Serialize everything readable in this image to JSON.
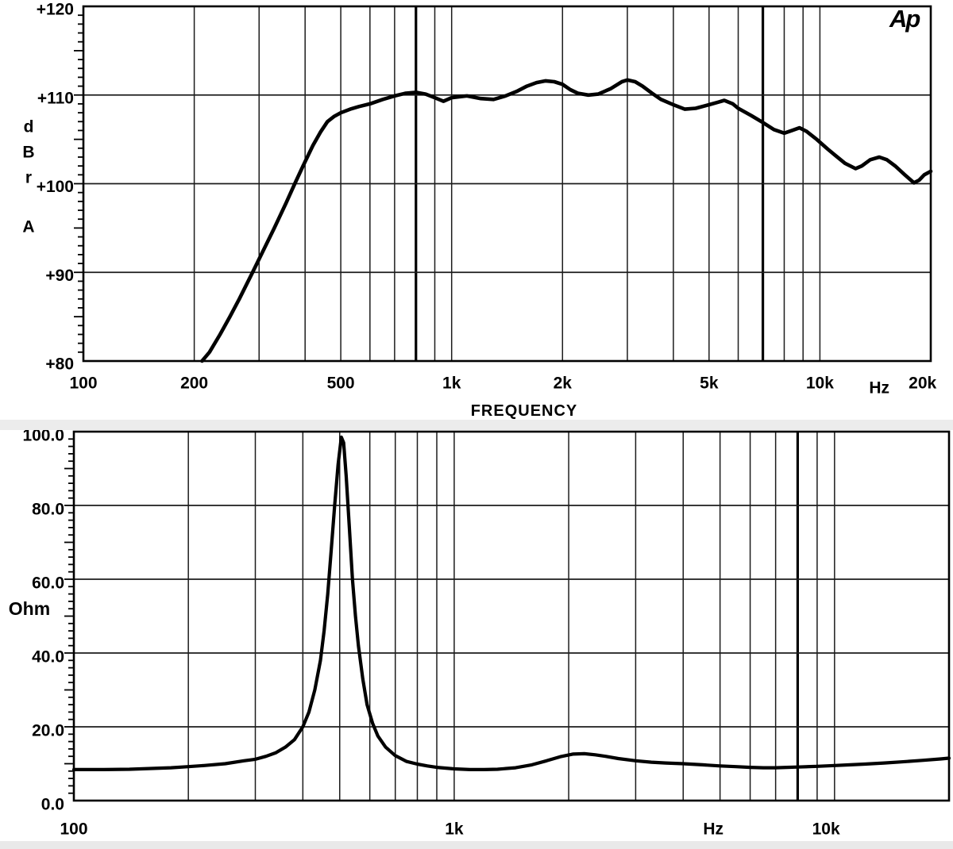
{
  "logo": {
    "text": "Ap"
  },
  "colors": {
    "ink": "#000000",
    "grid": "#1c1c1c",
    "background": "#ffffff"
  },
  "chart_data": [
    {
      "type": "line",
      "panel": "frequency-response",
      "title": "",
      "xlabel": "FREQUENCY",
      "ylabel_lines": [
        "d",
        "B",
        "r",
        "A"
      ],
      "x_scale": "log",
      "xlim": [
        100,
        20000
      ],
      "ylim": [
        80,
        120
      ],
      "grid": true,
      "legend": "none",
      "y_ticks": [
        {
          "v": 120,
          "label": "+120"
        },
        {
          "v": 110,
          "label": "+110"
        },
        {
          "v": 100,
          "label": "+100"
        },
        {
          "v": 90,
          "label": "+90"
        },
        {
          "v": 80,
          "label": "+80"
        }
      ],
      "y_gridlines": [
        90,
        100,
        110
      ],
      "y_minor_step": 1,
      "y_major_every": 5,
      "x_gridlines": [
        200,
        300,
        400,
        500,
        600,
        700,
        800,
        900,
        1000,
        2000,
        3000,
        4000,
        5000,
        6000,
        7000,
        8000,
        9000,
        10000
      ],
      "x_emphasis": [
        800,
        7000
      ],
      "x_ticks": [
        {
          "f": 100,
          "label": "100"
        },
        {
          "f": 200,
          "label": "200"
        },
        {
          "f": 500,
          "label": "500"
        },
        {
          "f": 1000,
          "label": "1k"
        },
        {
          "f": 2000,
          "label": "2k"
        },
        {
          "f": 5000,
          "label": "5k"
        },
        {
          "f": 10000,
          "label": "10k"
        },
        {
          "f": 14500,
          "label": "Hz",
          "dy": 6,
          "unit": true
        },
        {
          "f": 20000,
          "label": "20k",
          "label_f": 19000
        }
      ],
      "series": [
        {
          "points": [
            [
              210,
              80.0
            ],
            [
              220,
              81.0
            ],
            [
              235,
              83.0
            ],
            [
              250,
              85.0
            ],
            [
              265,
              87.0
            ],
            [
              288,
              90.0
            ],
            [
              310,
              92.7
            ],
            [
              330,
              95.0
            ],
            [
              355,
              97.8
            ],
            [
              375,
              100.0
            ],
            [
              395,
              102.0
            ],
            [
              420,
              104.3
            ],
            [
              440,
              105.8
            ],
            [
              460,
              107.0
            ],
            [
              480,
              107.6
            ],
            [
              500,
              108.0
            ],
            [
              530,
              108.4
            ],
            [
              560,
              108.7
            ],
            [
              600,
              109.0
            ],
            [
              650,
              109.5
            ],
            [
              700,
              109.9
            ],
            [
              750,
              110.2
            ],
            [
              800,
              110.3
            ],
            [
              850,
              110.1
            ],
            [
              900,
              109.7
            ],
            [
              950,
              109.3
            ],
            [
              1000,
              109.7
            ],
            [
              1100,
              109.9
            ],
            [
              1200,
              109.6
            ],
            [
              1300,
              109.5
            ],
            [
              1400,
              109.9
            ],
            [
              1500,
              110.4
            ],
            [
              1600,
              111.0
            ],
            [
              1700,
              111.4
            ],
            [
              1800,
              111.6
            ],
            [
              1900,
              111.5
            ],
            [
              2000,
              111.2
            ],
            [
              2100,
              110.6
            ],
            [
              2200,
              110.2
            ],
            [
              2350,
              110.0
            ],
            [
              2500,
              110.1
            ],
            [
              2700,
              110.7
            ],
            [
              2900,
              111.5
            ],
            [
              3000,
              111.7
            ],
            [
              3150,
              111.5
            ],
            [
              3300,
              111.0
            ],
            [
              3500,
              110.2
            ],
            [
              3700,
              109.5
            ],
            [
              4000,
              108.9
            ],
            [
              4300,
              108.4
            ],
            [
              4600,
              108.5
            ],
            [
              5000,
              108.9
            ],
            [
              5300,
              109.2
            ],
            [
              5500,
              109.4
            ],
            [
              5800,
              109.0
            ],
            [
              6000,
              108.5
            ],
            [
              6500,
              107.7
            ],
            [
              7000,
              106.9
            ],
            [
              7500,
              106.1
            ],
            [
              8000,
              105.7
            ],
            [
              8400,
              106.0
            ],
            [
              8800,
              106.3
            ],
            [
              9200,
              105.9
            ],
            [
              9800,
              105.0
            ],
            [
              10500,
              103.9
            ],
            [
              11000,
              103.2
            ],
            [
              11700,
              102.3
            ],
            [
              12500,
              101.7
            ],
            [
              13000,
              102.0
            ],
            [
              13700,
              102.7
            ],
            [
              14500,
              103.0
            ],
            [
              15200,
              102.7
            ],
            [
              16000,
              102.0
            ],
            [
              17000,
              101.0
            ],
            [
              18000,
              100.1
            ],
            [
              18600,
              100.4
            ],
            [
              19200,
              101.0
            ],
            [
              20000,
              101.4
            ]
          ]
        }
      ]
    },
    {
      "type": "line",
      "panel": "impedance",
      "title": "",
      "xlabel": "",
      "ylabel": "Ohm",
      "x_scale": "log",
      "xlim": [
        100,
        20000
      ],
      "ylim": [
        0,
        100
      ],
      "grid": true,
      "legend": "none",
      "y_ticks": [
        {
          "v": 100,
          "label": "100.0"
        },
        {
          "v": 80,
          "label": "80.0"
        },
        {
          "v": 60,
          "label": "60.0"
        },
        {
          "v": 40,
          "label": "40.0"
        },
        {
          "v": 20,
          "label": "20.0"
        },
        {
          "v": 0,
          "label": "0.0"
        }
      ],
      "y_gridlines": [
        20,
        40,
        60,
        80
      ],
      "y_minor_step": 2,
      "y_major_every": 10,
      "x_gridlines": [
        200,
        300,
        400,
        500,
        600,
        700,
        800,
        900,
        1000,
        2000,
        3000,
        4000,
        5000,
        6000,
        7000,
        8000,
        9000,
        10000
      ],
      "x_emphasis": [
        8000
      ],
      "x_ticks": [
        {
          "f": 100,
          "label": "100"
        },
        {
          "f": 1000,
          "label": "1k"
        },
        {
          "f": 4800,
          "label": "Hz",
          "unit": true
        },
        {
          "f": 10000,
          "label": "10k",
          "label_f": 9500
        }
      ],
      "series": [
        {
          "points": [
            [
              100,
              8.4
            ],
            [
              120,
              8.4
            ],
            [
              140,
              8.5
            ],
            [
              160,
              8.7
            ],
            [
              180,
              8.9
            ],
            [
              200,
              9.2
            ],
            [
              220,
              9.5
            ],
            [
              250,
              10.0
            ],
            [
              280,
              10.8
            ],
            [
              300,
              11.2
            ],
            [
              320,
              12.0
            ],
            [
              340,
              13.0
            ],
            [
              360,
              14.5
            ],
            [
              380,
              16.5
            ],
            [
              400,
              20.0
            ],
            [
              415,
              24.0
            ],
            [
              430,
              30.0
            ],
            [
              445,
              38.0
            ],
            [
              455,
              46.0
            ],
            [
              465,
              56.0
            ],
            [
              475,
              68.0
            ],
            [
              485,
              80.0
            ],
            [
              495,
              91.0
            ],
            [
              505,
              98.5
            ],
            [
              512,
              97.0
            ],
            [
              520,
              88.0
            ],
            [
              530,
              74.0
            ],
            [
              540,
              60.0
            ],
            [
              550,
              50.0
            ],
            [
              560,
              42.0
            ],
            [
              575,
              33.0
            ],
            [
              590,
              26.0
            ],
            [
              610,
              21.0
            ],
            [
              630,
              17.5
            ],
            [
              660,
              14.5
            ],
            [
              700,
              12.2
            ],
            [
              750,
              10.6
            ],
            [
              800,
              9.9
            ],
            [
              850,
              9.4
            ],
            [
              900,
              9.0
            ],
            [
              1000,
              8.6
            ],
            [
              1100,
              8.4
            ],
            [
              1200,
              8.4
            ],
            [
              1300,
              8.5
            ],
            [
              1450,
              8.9
            ],
            [
              1600,
              9.7
            ],
            [
              1750,
              10.8
            ],
            [
              1900,
              11.9
            ],
            [
              2050,
              12.6
            ],
            [
              2200,
              12.7
            ],
            [
              2350,
              12.4
            ],
            [
              2500,
              12.0
            ],
            [
              2700,
              11.4
            ],
            [
              3000,
              10.8
            ],
            [
              3300,
              10.4
            ],
            [
              3600,
              10.2
            ],
            [
              4000,
              10.0
            ],
            [
              4500,
              9.7
            ],
            [
              5000,
              9.4
            ],
            [
              5500,
              9.2
            ],
            [
              6000,
              9.0
            ],
            [
              6500,
              8.9
            ],
            [
              7000,
              8.9
            ],
            [
              7500,
              9.0
            ],
            [
              8000,
              9.1
            ],
            [
              9000,
              9.3
            ],
            [
              10000,
              9.5
            ],
            [
              11000,
              9.7
            ],
            [
              12000,
              9.9
            ],
            [
              13500,
              10.2
            ],
            [
              15000,
              10.5
            ],
            [
              17000,
              10.9
            ],
            [
              19000,
              11.3
            ],
            [
              20000,
              11.5
            ]
          ]
        }
      ]
    }
  ]
}
